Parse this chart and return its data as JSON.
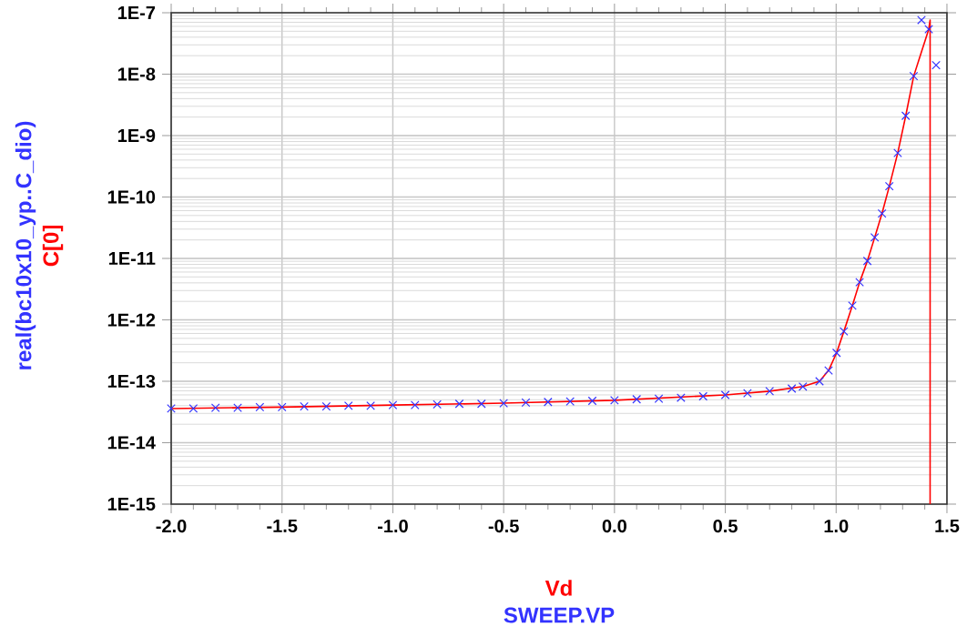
{
  "chart_data": {
    "type": "line",
    "xlabel": "Vd",
    "annotations": [
      "SWEEP.VP"
    ],
    "log": "y",
    "grid": true,
    "legend": false,
    "xlim": [
      -2.0,
      1.5
    ],
    "ylim": [
      1e-15,
      1e-07
    ],
    "xticks": [
      {
        "value": -2.0,
        "label": "-2.0"
      },
      {
        "value": -1.5,
        "label": "-1.5"
      },
      {
        "value": -1.0,
        "label": "-1.0"
      },
      {
        "value": -0.5,
        "label": "-0.5"
      },
      {
        "value": 0.0,
        "label": "0.0"
      },
      {
        "value": 0.5,
        "label": "0.5"
      },
      {
        "value": 1.0,
        "label": "1.0"
      },
      {
        "value": 1.5,
        "label": "1.5"
      }
    ],
    "yticks": [
      {
        "value": 1e-15,
        "label": "1E-15"
      },
      {
        "value": 1e-14,
        "label": "1E-14"
      },
      {
        "value": 1e-13,
        "label": "1E-13"
      },
      {
        "value": 1e-12,
        "label": "1E-12"
      },
      {
        "value": 1e-11,
        "label": "1E-11"
      },
      {
        "value": 1e-10,
        "label": "1E-10"
      },
      {
        "value": 1e-09,
        "label": "1E-9"
      },
      {
        "value": 1e-08,
        "label": "1E-8"
      },
      {
        "value": 1e-07,
        "label": "1E-7"
      }
    ],
    "series": [
      {
        "name": "real(bc10x10_yp..C_dio)",
        "type": "scatter",
        "marker": "cross",
        "color": "#3333ff",
        "x": [
          -2.0,
          -1.9,
          -1.8,
          -1.7,
          -1.6,
          -1.5,
          -1.4,
          -1.3,
          -1.2,
          -1.1,
          -1.0,
          -0.9,
          -0.8,
          -0.7,
          -0.6,
          -0.5,
          -0.4,
          -0.3,
          -0.2,
          -0.1,
          0.0,
          0.1,
          0.2,
          0.3,
          0.4,
          0.5,
          0.6,
          0.7,
          0.8,
          0.85,
          0.925,
          0.966,
          1.002,
          1.035,
          1.073,
          1.106,
          1.141,
          1.174,
          1.207,
          1.24,
          1.278,
          1.314,
          1.35,
          1.385,
          1.418,
          1.451
        ],
        "values": [
          3.6e-14,
          3.6e-14,
          3.7e-14,
          3.7e-14,
          3.8e-14,
          3.8e-14,
          3.9e-14,
          3.9e-14,
          4e-14,
          4e-14,
          4.1e-14,
          4.1e-14,
          4.2e-14,
          4.3e-14,
          4.3e-14,
          4.4e-14,
          4.5e-14,
          4.6e-14,
          4.7e-14,
          4.8e-14,
          4.9e-14,
          5.1e-14,
          5.2e-14,
          5.4e-14,
          5.7e-14,
          6e-14,
          6.4e-14,
          6.9e-14,
          7.6e-14,
          8.2e-14,
          1e-13,
          1.5e-13,
          2.9e-13,
          6.5e-13,
          1.7e-12,
          4.1e-12,
          9.1e-12,
          2.2e-11,
          5.4e-11,
          1.5e-10,
          5.2e-10,
          2.1e-09,
          9.3e-09,
          7.6e-08,
          5.4e-08,
          1.4e-08
        ]
      },
      {
        "name": "C[0]",
        "color": "#ff0000",
        "x": [
          -2.0,
          -1.5,
          -1.0,
          -0.5,
          0.0,
          0.5,
          0.7,
          0.85,
          0.925,
          0.966,
          1.002,
          1.035,
          1.073,
          1.106,
          1.141,
          1.174,
          1.207,
          1.24,
          1.278,
          1.314,
          1.35,
          1.385,
          1.418,
          1.424,
          1.424
        ],
        "values": [
          3.6e-14,
          3.8e-14,
          4.1e-14,
          4.4e-14,
          4.9e-14,
          6e-14,
          6.9e-14,
          8.2e-14,
          1e-13,
          1.5e-13,
          2.9e-13,
          6.5e-13,
          1.7e-12,
          4.1e-12,
          9.1e-12,
          2.2e-11,
          5.4e-11,
          1.5e-10,
          5.2e-10,
          2.1e-09,
          9.3e-09,
          2.3e-08,
          5.4e-08,
          7.6e-08,
          1e-15
        ]
      }
    ]
  }
}
